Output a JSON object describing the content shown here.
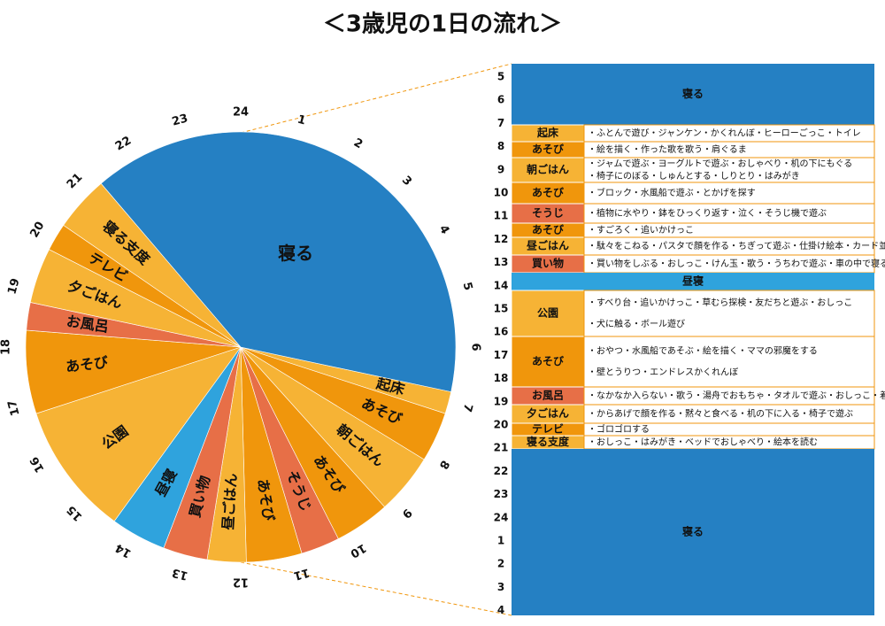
{
  "chart_data": {
    "type": "pie",
    "title": "＜3歳児の1日の流れ＞",
    "start_hour": 6.8,
    "hour_labels": [
      1,
      2,
      3,
      4,
      5,
      6,
      7,
      8,
      9,
      10,
      11,
      12,
      13,
      14,
      15,
      16,
      17,
      18,
      19,
      20,
      21,
      22,
      23,
      24
    ],
    "categories": [
      "起床",
      "あそび",
      "朝ごはん",
      "あそび",
      "そうじ",
      "あそび",
      "昼ごはん",
      "買い物",
      "昼寝",
      "公園",
      "あそび",
      "お風呂",
      "夕ごはん",
      "テレビ",
      "寝る支度",
      "寝る"
    ],
    "values": [
      0.4,
      0.9,
      1.1,
      1,
      0.7,
      1,
      0.7,
      0.8,
      1,
      2.4,
      1.5,
      0.5,
      1,
      0.5,
      1,
      9.5
    ],
    "colors": [
      "#f6b335",
      "#f0960c",
      "#f6b335",
      "#f0960c",
      "#e76f47",
      "#f0960c",
      "#f6b335",
      "#e76f47",
      "#2fa3dd",
      "#f6b335",
      "#f0960c",
      "#e76f47",
      "#f6b335",
      "#f0960c",
      "#f6b335",
      "#2580c3"
    ]
  },
  "table": {
    "hours": [
      5,
      6,
      7,
      8,
      9,
      10,
      11,
      12,
      13,
      14,
      15,
      16,
      17,
      18,
      19,
      20,
      21,
      22,
      23,
      24,
      1,
      2,
      3,
      4
    ],
    "rows": [
      {
        "label": "寝る",
        "color": "#2580c3",
        "items": []
      },
      {
        "label": "起床",
        "color": "#f6b335",
        "items": [
          "・ふとんで遊び・ジャンケン・かくれんぼ・ヒーローごっこ・トイレ"
        ]
      },
      {
        "label": "あそび",
        "color": "#f0960c",
        "items": [
          "・絵を描く・作った歌を歌う・肩ぐるま"
        ]
      },
      {
        "label": "朝ごはん",
        "color": "#f6b335",
        "items": [
          "・ジャムで遊ぶ・ヨーグルトで遊ぶ・おしゃべり・机の下にもぐる",
          "・椅子にのぼる・しゅんとする・しりとり・はみがき"
        ]
      },
      {
        "label": "あそび",
        "color": "#f0960c",
        "items": [
          "・ブロック・水風船で遊ぶ・とかげを探す"
        ]
      },
      {
        "label": "そうじ",
        "color": "#e76f47",
        "items": [
          "・植物に水やり・鉢をひっくり返す・泣く・そうじ機で遊ぶ"
        ]
      },
      {
        "label": "あそび",
        "color": "#f0960c",
        "items": [
          "・すごろく・追いかけっこ"
        ]
      },
      {
        "label": "昼ごはん",
        "color": "#f6b335",
        "items": [
          "・駄々をこねる・パスタで顔を作る・ちぎって遊ぶ・仕掛け絵本・カード並べ"
        ]
      },
      {
        "label": "買い物",
        "color": "#e76f47",
        "items": [
          "・買い物をしぶる・おしっこ・けん玉・歌う・うちわで遊ぶ・車の中で寝る"
        ]
      },
      {
        "label": "昼寝",
        "color": "#2fa3dd",
        "items": []
      },
      {
        "label": "公園",
        "color": "#f6b335",
        "items": [
          "・すべり台・追いかけっこ・草むら探検・友だちと遊ぶ・おしっこ",
          "・犬に触る・ボール遊び"
        ]
      },
      {
        "label": "あそび",
        "color": "#f0960c",
        "items": [
          "・おやつ・水風船であそぶ・絵を描く・ママの邪魔をする",
          "・壁とうりつ・エンドレスかくれんぼ"
        ]
      },
      {
        "label": "お風呂",
        "color": "#e76f47",
        "items": [
          "・なかなか入らない・歌う・湯舟でおもちゃ・タオルで遊ぶ・おしっこ・着替え"
        ]
      },
      {
        "label": "夕ごはん",
        "color": "#f6b335",
        "items": [
          "・からあげで顔を作る・黙々と食べる・机の下に入る・椅子で遊ぶ"
        ]
      },
      {
        "label": "テレビ",
        "color": "#f0960c",
        "items": [
          "・ゴロゴロする"
        ]
      },
      {
        "label": "寝る支度",
        "color": "#f6b335",
        "items": [
          "・おしっこ・はみがき・ベッドでおしゃべり・絵本を読む"
        ]
      },
      {
        "label": "寝る",
        "color": "#2580c3",
        "items": []
      }
    ]
  }
}
